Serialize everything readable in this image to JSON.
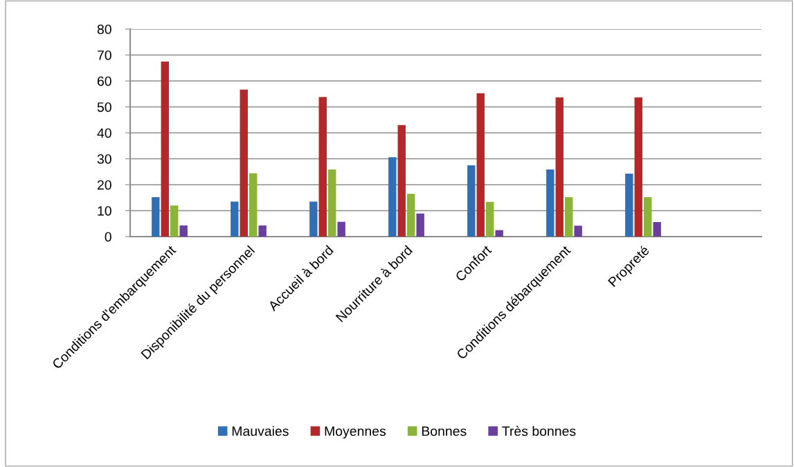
{
  "chart_data": {
    "type": "bar",
    "categories": [
      "Conditions d'embarquement",
      "Disponibilité du personnel",
      "Accueil à bord",
      "Nourriture à bord",
      "Confort",
      "Conditions débarquement",
      "Propreté",
      null
    ],
    "series": [
      {
        "name": "Mauvaies",
        "color": "#2f6fb5",
        "values": [
          15.2,
          13.5,
          13.5,
          30.6,
          27.5,
          25.9,
          24.3,
          null
        ]
      },
      {
        "name": "Moyennes",
        "color": "#b5282a",
        "values": [
          67.5,
          56.7,
          53.8,
          43.0,
          55.3,
          53.7,
          53.7,
          null
        ]
      },
      {
        "name": "Bonnes",
        "color": "#8cb43a",
        "values": [
          12.0,
          24.4,
          25.9,
          16.5,
          13.4,
          15.2,
          15.2,
          null
        ]
      },
      {
        "name": "Très bonnes",
        "color": "#6b3f9c",
        "values": [
          4.3,
          4.3,
          5.7,
          8.9,
          2.5,
          4.2,
          5.6,
          null
        ]
      }
    ],
    "ylim": [
      0,
      80
    ],
    "yticks": [
      0,
      10,
      20,
      30,
      40,
      50,
      60,
      70,
      80
    ],
    "grid": "y",
    "legend": "bottom"
  }
}
